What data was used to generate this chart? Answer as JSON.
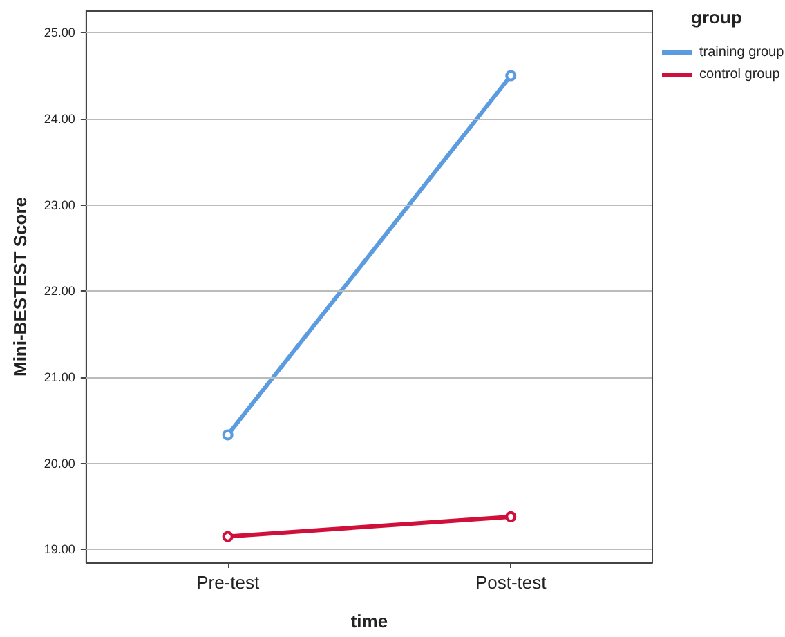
{
  "chart_data": {
    "type": "line",
    "xlabel": "time",
    "ylabel": "Mini-BESTEST Score",
    "legend_title": "group",
    "categories": [
      "Pre-test",
      "Post-test"
    ],
    "series": [
      {
        "name": "training group",
        "color": "#5b9be0",
        "values": [
          20.33,
          24.5
        ]
      },
      {
        "name": "control group",
        "color": "#d0103a",
        "values": [
          19.15,
          19.38
        ]
      }
    ],
    "ylim": [
      18.85,
      25.25
    ],
    "yticks": [
      {
        "value": 19,
        "label": "19.00"
      },
      {
        "value": 20,
        "label": "20.00"
      },
      {
        "value": 21,
        "label": "21.00"
      },
      {
        "value": 22,
        "label": "22.00"
      },
      {
        "value": 23,
        "label": "23.00"
      },
      {
        "value": 24,
        "label": "24.00"
      },
      {
        "value": 25,
        "label": "25.00"
      }
    ],
    "grid": "y",
    "legend": "top right",
    "marker": "circle"
  }
}
